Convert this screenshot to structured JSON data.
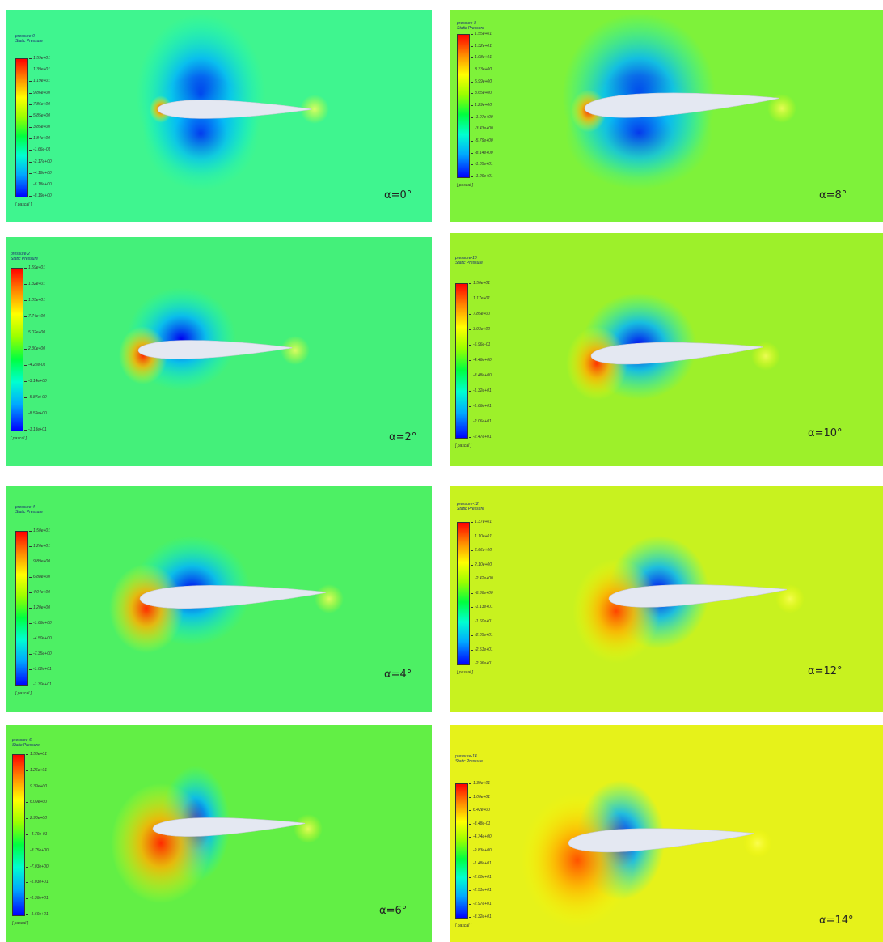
{
  "panels": [
    {
      "angle_label": "α=0°",
      "legend_title": "pressure-0",
      "legend_subtitle": "Static Pressure",
      "legend_unit": "[ pascal ]",
      "ticks": [
        "1.59e+01",
        "1.39e+01",
        "1.19e+01",
        "9.86e+00",
        "7.86e+00",
        "5.85e+00",
        "3.85e+00",
        "1.84e+00",
        "-1.66e-01",
        "-2.17e+00",
        "-4.18e+00",
        "-6.18e+00",
        "-8.19e+00"
      ],
      "colors": {
        "background": "#3ff58f",
        "suction": "#0000f0",
        "stagnation": "#ff2a00"
      }
    },
    {
      "angle_label": "α=8°",
      "legend_title": "pressure-8",
      "legend_subtitle": "Static Pressure",
      "legend_unit": "[ pascal ]",
      "ticks": [
        "1.55e+01",
        "1.32e+01",
        "1.08e+01",
        "8.33e+00",
        "5.99e+00",
        "3.65e+00",
        "1.29e+00",
        "-1.07e+00",
        "-3.43e+00",
        "-5.79e+00",
        "-8.14e+00",
        "-1.05e+01",
        "-1.29e+01"
      ],
      "colors": {
        "background": "#7ef23a",
        "suction": "#0000f0",
        "stagnation": "#ff3300"
      }
    },
    {
      "angle_label": "α=2°",
      "legend_title": "pressure-2",
      "legend_subtitle": "Static Pressure",
      "legend_unit": "[ pascal ]",
      "ticks": [
        "1.59e+01",
        "1.32e+01",
        "1.05e+01",
        "7.74e+00",
        "5.02e+00",
        "2.30e+00",
        "-4.22e-01",
        "-3.14e+00",
        "-5.87e+00",
        "-8.59e+00",
        "-1.13e+01"
      ],
      "colors": {
        "background": "#44f07a",
        "suction": "#0000f0",
        "stagnation": "#ff2a00"
      }
    },
    {
      "angle_label": "α=10°",
      "legend_title": "pressure-10",
      "legend_subtitle": "Static Pressure",
      "legend_unit": "[ pascal ]",
      "ticks": [
        "1.56e+01",
        "1.17e+01",
        "7.85e+00",
        "3.93e+00",
        "-5.96e-01",
        "-4.46e+00",
        "-8.48e+00",
        "-1.32e+01",
        "-1.66e+01",
        "-2.06e+01",
        "-2.47e+01"
      ],
      "colors": {
        "background": "#9df02a",
        "suction": "#0000f0",
        "stagnation": "#ff3300"
      }
    },
    {
      "angle_label": "α=4°",
      "legend_title": "pressure-4",
      "legend_subtitle": "Static Pressure",
      "legend_unit": "[ pascal ]",
      "ticks": [
        "1.50e+01",
        "1.26e+01",
        "9.89e+00",
        "6.88e+00",
        "4.04e+00",
        "1.20e+00",
        "-1.66e+00",
        "-4.50e+00",
        "-7.35e+00",
        "-1.02e+01",
        "-1.30e+01"
      ],
      "colors": {
        "background": "#4df064",
        "suction": "#0000f0",
        "stagnation": "#ff2a00"
      }
    },
    {
      "angle_label": "α=12°",
      "legend_title": "pressure-12",
      "legend_subtitle": "Static Pressure",
      "legend_unit": "[ pascal ]",
      "ticks": [
        "1.37e+01",
        "1.10e+01",
        "6.66e+00",
        "2.10e+00",
        "-2.42e+00",
        "-6.86e+00",
        "-1.13e+01",
        "-1.60e+01",
        "-2.05e+01",
        "-2.51e+01",
        "-2.96e+01"
      ],
      "colors": {
        "background": "#c8f21f",
        "suction": "#0000f0",
        "stagnation": "#ff4400"
      }
    },
    {
      "angle_label": "α=6°",
      "legend_title": "pressure-6",
      "legend_subtitle": "Static Pressure",
      "legend_unit": "[ pascal ]",
      "ticks": [
        "1.58e+01",
        "1.26e+01",
        "9.39e+00",
        "6.09e+00",
        "2.96e+00",
        "-4.79e-01",
        "-3.75e+00",
        "-7.03e+00",
        "-1.03e+01",
        "-1.36e+01",
        "-1.69e+01"
      ],
      "colors": {
        "background": "#62ef45",
        "suction": "#0000f0",
        "stagnation": "#ff2a00"
      }
    },
    {
      "angle_label": "α=14°",
      "legend_title": "pressure-14",
      "legend_subtitle": "Static Pressure",
      "legend_unit": "[ pascal ]",
      "ticks": [
        "1.39e+01",
        "1.00e+01",
        "6.42e+00",
        "-3.48e-01",
        "-4.74e+00",
        "-9.83e+00",
        "-1.48e+01",
        "-2.00e+01",
        "-2.51e+01",
        "-2.97e+01",
        "-3.32e+01"
      ],
      "colors": {
        "background": "#e6f21a",
        "suction": "#0000f0",
        "stagnation": "#ff5200"
      }
    }
  ]
}
